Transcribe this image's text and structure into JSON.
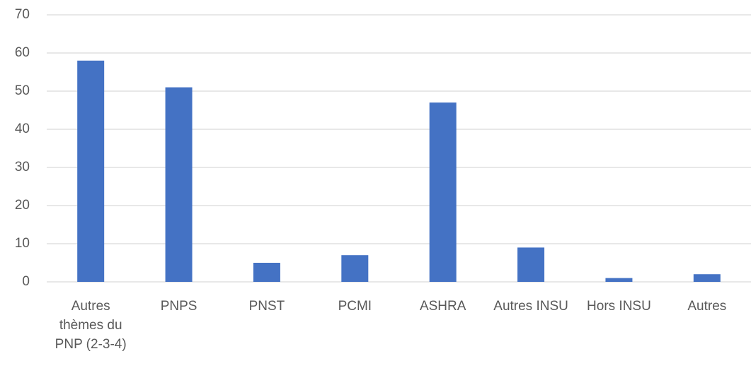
{
  "chart_data": {
    "type": "bar",
    "categories": [
      "Autres thèmes du PNP (2-3-4)",
      "PNPS",
      "PNST",
      "PCMI",
      "ASHRA",
      "Autres INSU",
      "Hors INSU",
      "Autres"
    ],
    "values": [
      58,
      51,
      5,
      7,
      47,
      9,
      1,
      2
    ],
    "color": "#4472c4",
    "ylim": [
      0,
      70
    ],
    "yticks": [
      0,
      10,
      20,
      30,
      40,
      50,
      60,
      70
    ],
    "grid": true
  }
}
